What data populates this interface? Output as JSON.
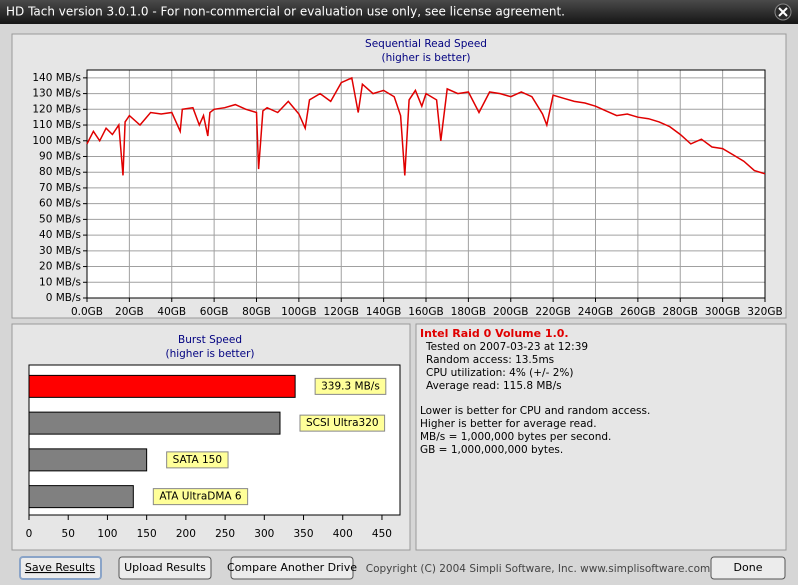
{
  "window": {
    "title": "HD Tach version 3.0.1.0  - For non-commercial or evaluation use only, see license agreement."
  },
  "chart_data": [
    {
      "type": "line",
      "title": "Sequential Read Speed",
      "subtitle": "(higher is better)",
      "color": "#e00000",
      "grid": true,
      "x": [
        0,
        3,
        6,
        9,
        12,
        15,
        17,
        18,
        20,
        25,
        30,
        35,
        40,
        44,
        45,
        50,
        53,
        55,
        57,
        58,
        60,
        65,
        70,
        75,
        80,
        81,
        83,
        85,
        90,
        95,
        100,
        103,
        105,
        110,
        115,
        120,
        125,
        128,
        130,
        135,
        140,
        145,
        148,
        150,
        152,
        155,
        158,
        160,
        165,
        167,
        170,
        175,
        180,
        185,
        190,
        195,
        200,
        205,
        210,
        215,
        217,
        220,
        225,
        230,
        235,
        240,
        245,
        250,
        255,
        260,
        265,
        270,
        275,
        280,
        285,
        290,
        295,
        300,
        305,
        310,
        315,
        320
      ],
      "values": [
        98,
        106,
        100,
        108,
        104,
        110,
        78,
        112,
        116,
        110,
        118,
        117,
        118,
        106,
        120,
        121,
        110,
        116,
        103,
        118,
        120,
        121,
        123,
        120,
        118,
        82,
        119,
        121,
        118,
        125,
        117,
        108,
        126,
        130,
        125,
        137,
        140,
        118,
        136,
        130,
        132,
        128,
        116,
        78,
        126,
        132,
        122,
        130,
        126,
        100,
        133,
        130,
        131,
        118,
        131,
        130,
        128,
        131,
        128,
        117,
        110,
        129,
        127,
        125,
        124,
        122,
        119,
        116,
        117,
        115,
        114,
        112,
        109,
        104,
        98,
        101,
        96,
        95,
        91,
        87,
        81,
        79
      ],
      "xlim": [
        0,
        320
      ],
      "ylim": [
        0,
        145
      ],
      "xticks": [
        {
          "value": 0,
          "label": "0.0GB"
        },
        {
          "value": 20,
          "label": "20GB"
        },
        {
          "value": 40,
          "label": "40GB"
        },
        {
          "value": 60,
          "label": "60GB"
        },
        {
          "value": 80,
          "label": "80GB"
        },
        {
          "value": 100,
          "label": "100GB"
        },
        {
          "value": 120,
          "label": "120GB"
        },
        {
          "value": 140,
          "label": "140GB"
        },
        {
          "value": 160,
          "label": "160GB"
        },
        {
          "value": 180,
          "label": "180GB"
        },
        {
          "value": 200,
          "label": "200GB"
        },
        {
          "value": 220,
          "label": "220GB"
        },
        {
          "value": 240,
          "label": "240GB"
        },
        {
          "value": 260,
          "label": "260GB"
        },
        {
          "value": 280,
          "label": "280GB"
        },
        {
          "value": 300,
          "label": "300GB"
        },
        {
          "value": 320,
          "label": "320GB"
        }
      ],
      "yticks": [
        {
          "value": 0,
          "label": "0 MB/s"
        },
        {
          "value": 10,
          "label": "10 MB/s"
        },
        {
          "value": 20,
          "label": "20 MB/s"
        },
        {
          "value": 30,
          "label": "30 MB/s"
        },
        {
          "value": 40,
          "label": "40 MB/s"
        },
        {
          "value": 50,
          "label": "50 MB/s"
        },
        {
          "value": 60,
          "label": "60 MB/s"
        },
        {
          "value": 70,
          "label": "70 MB/s"
        },
        {
          "value": 80,
          "label": "80 MB/s"
        },
        {
          "value": 90,
          "label": "90 MB/s"
        },
        {
          "value": 100,
          "label": "100 MB/s"
        },
        {
          "value": 110,
          "label": "110 MB/s"
        },
        {
          "value": 120,
          "label": "120 MB/s"
        },
        {
          "value": 130,
          "label": "130 MB/s"
        },
        {
          "value": 140,
          "label": "140 MB/s"
        }
      ]
    },
    {
      "type": "hbar",
      "title": "Burst Speed",
      "subtitle": "(higher is better)",
      "grid": false,
      "categories": [
        null,
        "SCSI Ultra320",
        "SATA 150",
        "ATA UltraDMA 6"
      ],
      "values": [
        339.3,
        320,
        150,
        133
      ],
      "value_labels": [
        "339.3 MB/s",
        null,
        null,
        null
      ],
      "colors": [
        "#ff0000",
        "#808080",
        "#808080",
        "#808080"
      ],
      "xlim": [
        0,
        473
      ],
      "xticks": [
        0,
        50,
        100,
        150,
        200,
        250,
        300,
        350,
        400,
        450
      ]
    }
  ],
  "info": {
    "heading": "Intel Raid 0 Volume 1.0.",
    "lines": [
      "Tested on 2007-03-23 at 12:39",
      "Random access: 13.5ms",
      "CPU utilization: 4% (+/- 2%)",
      "Average read: 115.8 MB/s"
    ],
    "notes": [
      "Lower is better for CPU and random access.",
      "Higher is better for average read.",
      "MB/s = 1,000,000 bytes per second.",
      "GB = 1,000,000,000 bytes."
    ]
  },
  "buttons": {
    "save": "Save Results",
    "upload": "Upload Results",
    "compare": "Compare Another Drive",
    "done": "Done"
  },
  "copyright": "Copyright (C) 2004 Simpli Software, Inc. www.simplisoftware.com"
}
